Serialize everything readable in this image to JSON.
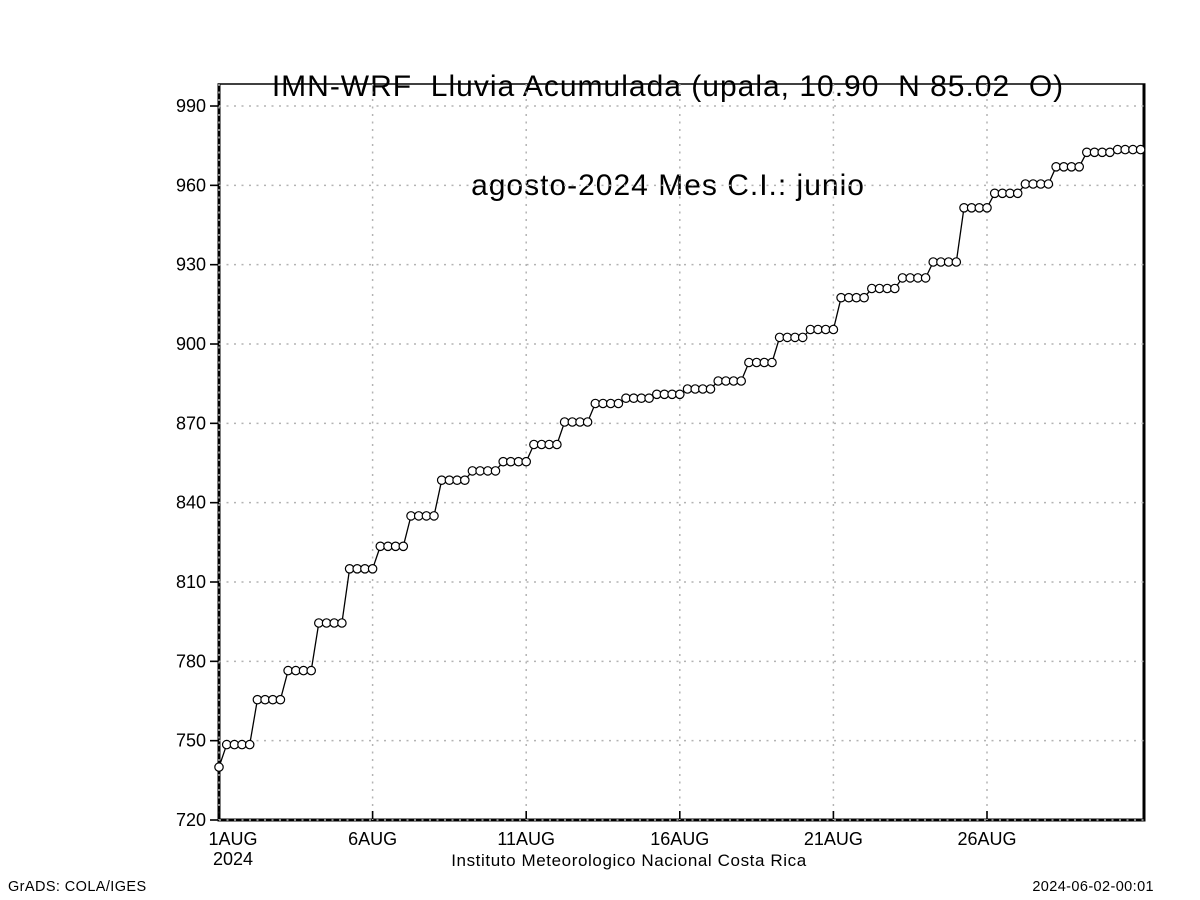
{
  "page": {
    "background": "#ffffff"
  },
  "footer": {
    "left": "GrADS: COLA/IGES",
    "right": "2024-06-02-00:01"
  },
  "chart_data": {
    "type": "line",
    "style": "cumulative-step",
    "marker": "open-circle",
    "line_color": "#000000",
    "marker_fill": "#ffffff",
    "grid_color": "#b3b3b3",
    "grid_style": "dotted",
    "title": "IMN-WRF  Lluvia Acumulada (upala, 10.90  N 85.02  O)",
    "subtitle": "agosto-2024 Mes C.I.: junio",
    "xlabel": "Instituto Meteorologico Nacional Costa Rica",
    "ylabel": "",
    "x_axis": {
      "tick_labels": [
        "1AUG",
        "6AUG",
        "11AUG",
        "16AUG",
        "21AUG",
        "26AUG"
      ],
      "tick_days": [
        1,
        6,
        11,
        16,
        21,
        26
      ],
      "year_label": "2024",
      "xlim": [
        1,
        31.1
      ]
    },
    "y_axis": {
      "ticks": [
        720,
        750,
        780,
        810,
        840,
        870,
        900,
        930,
        960,
        990
      ],
      "ylim": [
        720,
        998
      ]
    },
    "sample_interval_days": 0.25,
    "series": [
      {
        "name": "lluvia-acumulada-mm",
        "start_point": {
          "day": 1.0,
          "value": 740
        },
        "daily_values": [
          {
            "day": 1,
            "value": 748.5
          },
          {
            "day": 2,
            "value": 765.5
          },
          {
            "day": 3,
            "value": 776.5
          },
          {
            "day": 4,
            "value": 794.5
          },
          {
            "day": 5,
            "value": 815
          },
          {
            "day": 6,
            "value": 823.5
          },
          {
            "day": 7,
            "value": 835
          },
          {
            "day": 8,
            "value": 848.5
          },
          {
            "day": 9,
            "value": 852
          },
          {
            "day": 10,
            "value": 855.5
          },
          {
            "day": 11,
            "value": 862
          },
          {
            "day": 12,
            "value": 870.5
          },
          {
            "day": 13,
            "value": 877.5
          },
          {
            "day": 14,
            "value": 879.5
          },
          {
            "day": 15,
            "value": 881
          },
          {
            "day": 16,
            "value": 883
          },
          {
            "day": 17,
            "value": 886
          },
          {
            "day": 18,
            "value": 893
          },
          {
            "day": 19,
            "value": 902.5
          },
          {
            "day": 20,
            "value": 905.5
          },
          {
            "day": 21,
            "value": 917.5
          },
          {
            "day": 22,
            "value": 921
          },
          {
            "day": 23,
            "value": 925
          },
          {
            "day": 24,
            "value": 931
          },
          {
            "day": 25,
            "value": 951.5
          },
          {
            "day": 26,
            "value": 957
          },
          {
            "day": 27,
            "value": 960.5
          },
          {
            "day": 28,
            "value": 967
          },
          {
            "day": 29,
            "value": 972.5
          },
          {
            "day": 30,
            "value": 973.5
          }
        ]
      }
    ]
  }
}
